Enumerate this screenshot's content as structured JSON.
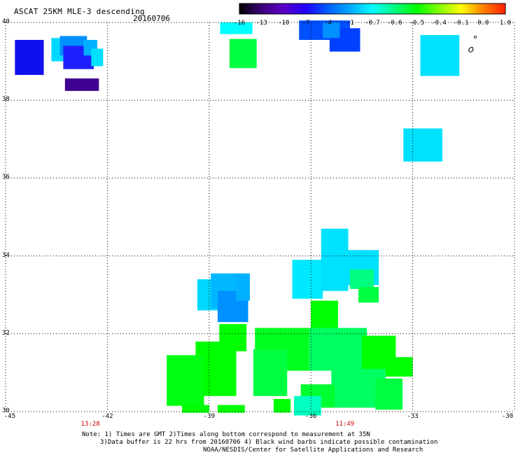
{
  "header": {
    "title": "ASCAT 25KM MLE-3 descending",
    "date": "20160706"
  },
  "colorbar": {
    "tick_labels": [
      "-16",
      "-13",
      "-10",
      "-7",
      "-4",
      "-1",
      "-0.7",
      "-0.6",
      "-0.5",
      "-0.4",
      "-0.1",
      "0.0",
      "1.0"
    ],
    "colors": [
      "#000000",
      "#3b007a",
      "#5a00c8",
      "#2000ff",
      "#0060ff",
      "#00aaff",
      "#00ffff",
      "#00ff80",
      "#00ff00",
      "#80ff00",
      "#ffff00",
      "#ff8000",
      "#ff2000"
    ]
  },
  "map": {
    "lat_labels": [
      "40",
      "38",
      "36",
      "34",
      "32",
      "30"
    ],
    "lon_labels": [
      "-45",
      "-42",
      "-39",
      "-36",
      "-33",
      "-30"
    ],
    "time_labels": [
      "13:28",
      "11:49"
    ],
    "time_lons": [
      -42.5,
      -35
    ]
  },
  "footer": {
    "line1": "Note: 1) Times are GMT 2)Times along bottom correspond to measurement at 35N",
    "line2": "3)Data buffer is 22 hrs from 20160706 4) Black wind barbs indicate possible contamination",
    "line3": "NOAA/NESDIS/Center for Satellite Applications and Research"
  },
  "swaths": [
    {
      "lon": -44.3,
      "lat": 39.1,
      "w": 0.85,
      "h": 0.9,
      "color": "#1010ee"
    },
    {
      "lon": -43.4,
      "lat": 39.3,
      "w": 0.5,
      "h": 0.6,
      "color": "#00d8ff"
    },
    {
      "lon": -43.0,
      "lat": 39.4,
      "w": 0.8,
      "h": 0.5,
      "color": "#0090ff"
    },
    {
      "lon": -42.85,
      "lat": 39.1,
      "w": 0.9,
      "h": 0.6,
      "color": "#2020ff"
    },
    {
      "lon": -42.5,
      "lat": 39.35,
      "w": 0.4,
      "h": 0.4,
      "color": "#00b0ff"
    },
    {
      "lon": -42.3,
      "lat": 39.1,
      "w": 0.35,
      "h": 0.45,
      "color": "#00e0ff"
    },
    {
      "lon": -42.75,
      "lat": 38.4,
      "w": 1.0,
      "h": 0.32,
      "color": "#400090"
    },
    {
      "lon": -38.2,
      "lat": 39.85,
      "w": 0.95,
      "h": 0.3,
      "color": "#00ffff"
    },
    {
      "lon": -38.0,
      "lat": 39.2,
      "w": 0.8,
      "h": 0.75,
      "color": "#00ff40"
    },
    {
      "lon": -35.6,
      "lat": 39.8,
      "w": 1.5,
      "h": 0.5,
      "color": "#0050ff"
    },
    {
      "lon": -35.0,
      "lat": 39.55,
      "w": 0.9,
      "h": 0.6,
      "color": "#0040ff"
    },
    {
      "lon": -35.4,
      "lat": 39.8,
      "w": 0.5,
      "h": 0.4,
      "color": "#0090ff"
    },
    {
      "lon": -32.2,
      "lat": 39.15,
      "w": 1.15,
      "h": 1.05,
      "color": "#00e0ff"
    },
    {
      "lon": -32.7,
      "lat": 36.85,
      "w": 1.15,
      "h": 0.85,
      "color": "#00e0ff"
    },
    {
      "lon": -38.9,
      "lat": 33.0,
      "w": 0.9,
      "h": 0.8,
      "color": "#00d8ff"
    },
    {
      "lon": -38.5,
      "lat": 33.1,
      "w": 0.9,
      "h": 0.9,
      "color": "#00b8ff"
    },
    {
      "lon": -38.3,
      "lat": 32.7,
      "w": 0.9,
      "h": 0.8,
      "color": "#0090ff"
    },
    {
      "lon": -38.0,
      "lat": 33.2,
      "w": 0.4,
      "h": 0.7,
      "color": "#00b0ff"
    },
    {
      "lon": -36.1,
      "lat": 33.4,
      "w": 0.9,
      "h": 1.0,
      "color": "#00e8ff"
    },
    {
      "lon": -35.3,
      "lat": 33.9,
      "w": 0.8,
      "h": 1.6,
      "color": "#00e0ff"
    },
    {
      "lon": -34.5,
      "lat": 33.7,
      "w": 1.0,
      "h": 0.9,
      "color": "#00e0ff"
    },
    {
      "lon": -34.5,
      "lat": 33.4,
      "w": 0.7,
      "h": 0.5,
      "color": "#00ff80"
    },
    {
      "lon": -34.3,
      "lat": 33.0,
      "w": 0.6,
      "h": 0.4,
      "color": "#00ff40"
    },
    {
      "lon": -35.6,
      "lat": 32.45,
      "w": 0.8,
      "h": 0.8,
      "color": "#00ff00"
    },
    {
      "lon": -38.3,
      "lat": 31.9,
      "w": 0.8,
      "h": 0.7,
      "color": "#00ff00"
    },
    {
      "lon": -36.85,
      "lat": 31.6,
      "w": 1.6,
      "h": 1.1,
      "color": "#00ff20"
    },
    {
      "lon": -35.2,
      "lat": 31.6,
      "w": 1.7,
      "h": 1.1,
      "color": "#00ff60"
    },
    {
      "lon": -34.0,
      "lat": 31.5,
      "w": 1.0,
      "h": 0.9,
      "color": "#00ff00"
    },
    {
      "lon": -38.8,
      "lat": 31.1,
      "w": 1.2,
      "h": 1.4,
      "color": "#00ff00"
    },
    {
      "lon": -39.7,
      "lat": 30.8,
      "w": 1.1,
      "h": 1.3,
      "color": "#00ff10"
    },
    {
      "lon": -37.2,
      "lat": 31.0,
      "w": 1.0,
      "h": 1.2,
      "color": "#00ff40"
    },
    {
      "lon": -33.4,
      "lat": 31.15,
      "w": 0.8,
      "h": 0.5,
      "color": "#00ff00"
    },
    {
      "lon": -34.6,
      "lat": 30.6,
      "w": 1.6,
      "h": 1.0,
      "color": "#00ff60"
    },
    {
      "lon": -35.8,
      "lat": 30.4,
      "w": 1.0,
      "h": 0.6,
      "color": "#00ff30"
    },
    {
      "lon": -36.1,
      "lat": 30.15,
      "w": 0.8,
      "h": 0.5,
      "color": "#00ffc0"
    },
    {
      "lon": -33.7,
      "lat": 30.45,
      "w": 0.8,
      "h": 0.8,
      "color": "#00ff40"
    },
    {
      "lon": -36.85,
      "lat": 30.15,
      "w": 0.5,
      "h": 0.35,
      "color": "#00ff00"
    },
    {
      "lon": -39.4,
      "lat": 30.07,
      "w": 0.8,
      "h": 0.2,
      "color": "#00ff00"
    },
    {
      "lon": -38.35,
      "lat": 30.07,
      "w": 0.8,
      "h": 0.2,
      "color": "#00ff00"
    }
  ]
}
